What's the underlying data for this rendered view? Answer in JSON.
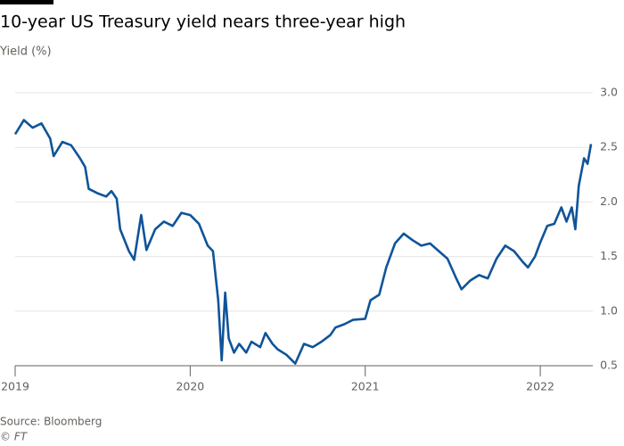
{
  "chart_data": {
    "type": "line",
    "title": "10-year US Treasury yield nears three-year high",
    "subtitle": "Yield (%)",
    "source": "Source: Bloomberg",
    "credit": "© FT",
    "color": "#0f5499",
    "grid": true,
    "xlim": [
      2019,
      2022.3
    ],
    "xticks": [
      2019,
      2020,
      2021,
      2022
    ],
    "ylim": [
      0.5,
      3.0
    ],
    "yticks": [
      0.5,
      {
        "value": 1,
        "label": "1.0"
      },
      1.5,
      {
        "value": 2,
        "label": "2.0"
      },
      2.5,
      {
        "value": 3,
        "label": "3.0"
      }
    ],
    "x": [
      2019.0,
      2019.05,
      2019.1,
      2019.15,
      2019.2,
      2019.22,
      2019.27,
      2019.32,
      2019.37,
      2019.4,
      2019.42,
      2019.47,
      2019.52,
      2019.55,
      2019.58,
      2019.6,
      2019.65,
      2019.68,
      2019.72,
      2019.75,
      2019.8,
      2019.85,
      2019.9,
      2019.95,
      2020.0,
      2020.05,
      2020.1,
      2020.13,
      2020.16,
      2020.18,
      2020.2,
      2020.22,
      2020.25,
      2020.28,
      2020.32,
      2020.35,
      2020.4,
      2020.43,
      2020.47,
      2020.5,
      2020.55,
      2020.6,
      2020.65,
      2020.7,
      2020.75,
      2020.8,
      2020.83,
      2020.88,
      2020.93,
      2021.0,
      2021.03,
      2021.08,
      2021.12,
      2021.17,
      2021.22,
      2021.27,
      2021.32,
      2021.37,
      2021.42,
      2021.47,
      2021.52,
      2021.55,
      2021.6,
      2021.65,
      2021.7,
      2021.75,
      2021.8,
      2021.85,
      2021.9,
      2021.93,
      2021.97,
      2022.0,
      2022.04,
      2022.08,
      2022.12,
      2022.15,
      2022.18,
      2022.2,
      2022.22,
      2022.25,
      2022.27,
      2022.29
    ],
    "values": [
      2.62,
      2.75,
      2.68,
      2.72,
      2.58,
      2.42,
      2.55,
      2.52,
      2.4,
      2.32,
      2.12,
      2.08,
      2.05,
      2.1,
      2.03,
      1.75,
      1.55,
      1.47,
      1.88,
      1.56,
      1.75,
      1.82,
      1.78,
      1.9,
      1.88,
      1.8,
      1.6,
      1.55,
      1.1,
      0.55,
      1.17,
      0.75,
      0.62,
      0.7,
      0.62,
      0.72,
      0.67,
      0.8,
      0.7,
      0.65,
      0.6,
      0.52,
      0.7,
      0.67,
      0.72,
      0.78,
      0.85,
      0.88,
      0.92,
      0.93,
      1.1,
      1.15,
      1.4,
      1.62,
      1.71,
      1.65,
      1.6,
      1.62,
      1.55,
      1.48,
      1.3,
      1.2,
      1.28,
      1.33,
      1.3,
      1.48,
      1.6,
      1.55,
      1.45,
      1.4,
      1.5,
      1.63,
      1.78,
      1.8,
      1.95,
      1.82,
      1.95,
      1.75,
      2.15,
      2.4,
      2.35,
      2.53
    ]
  }
}
